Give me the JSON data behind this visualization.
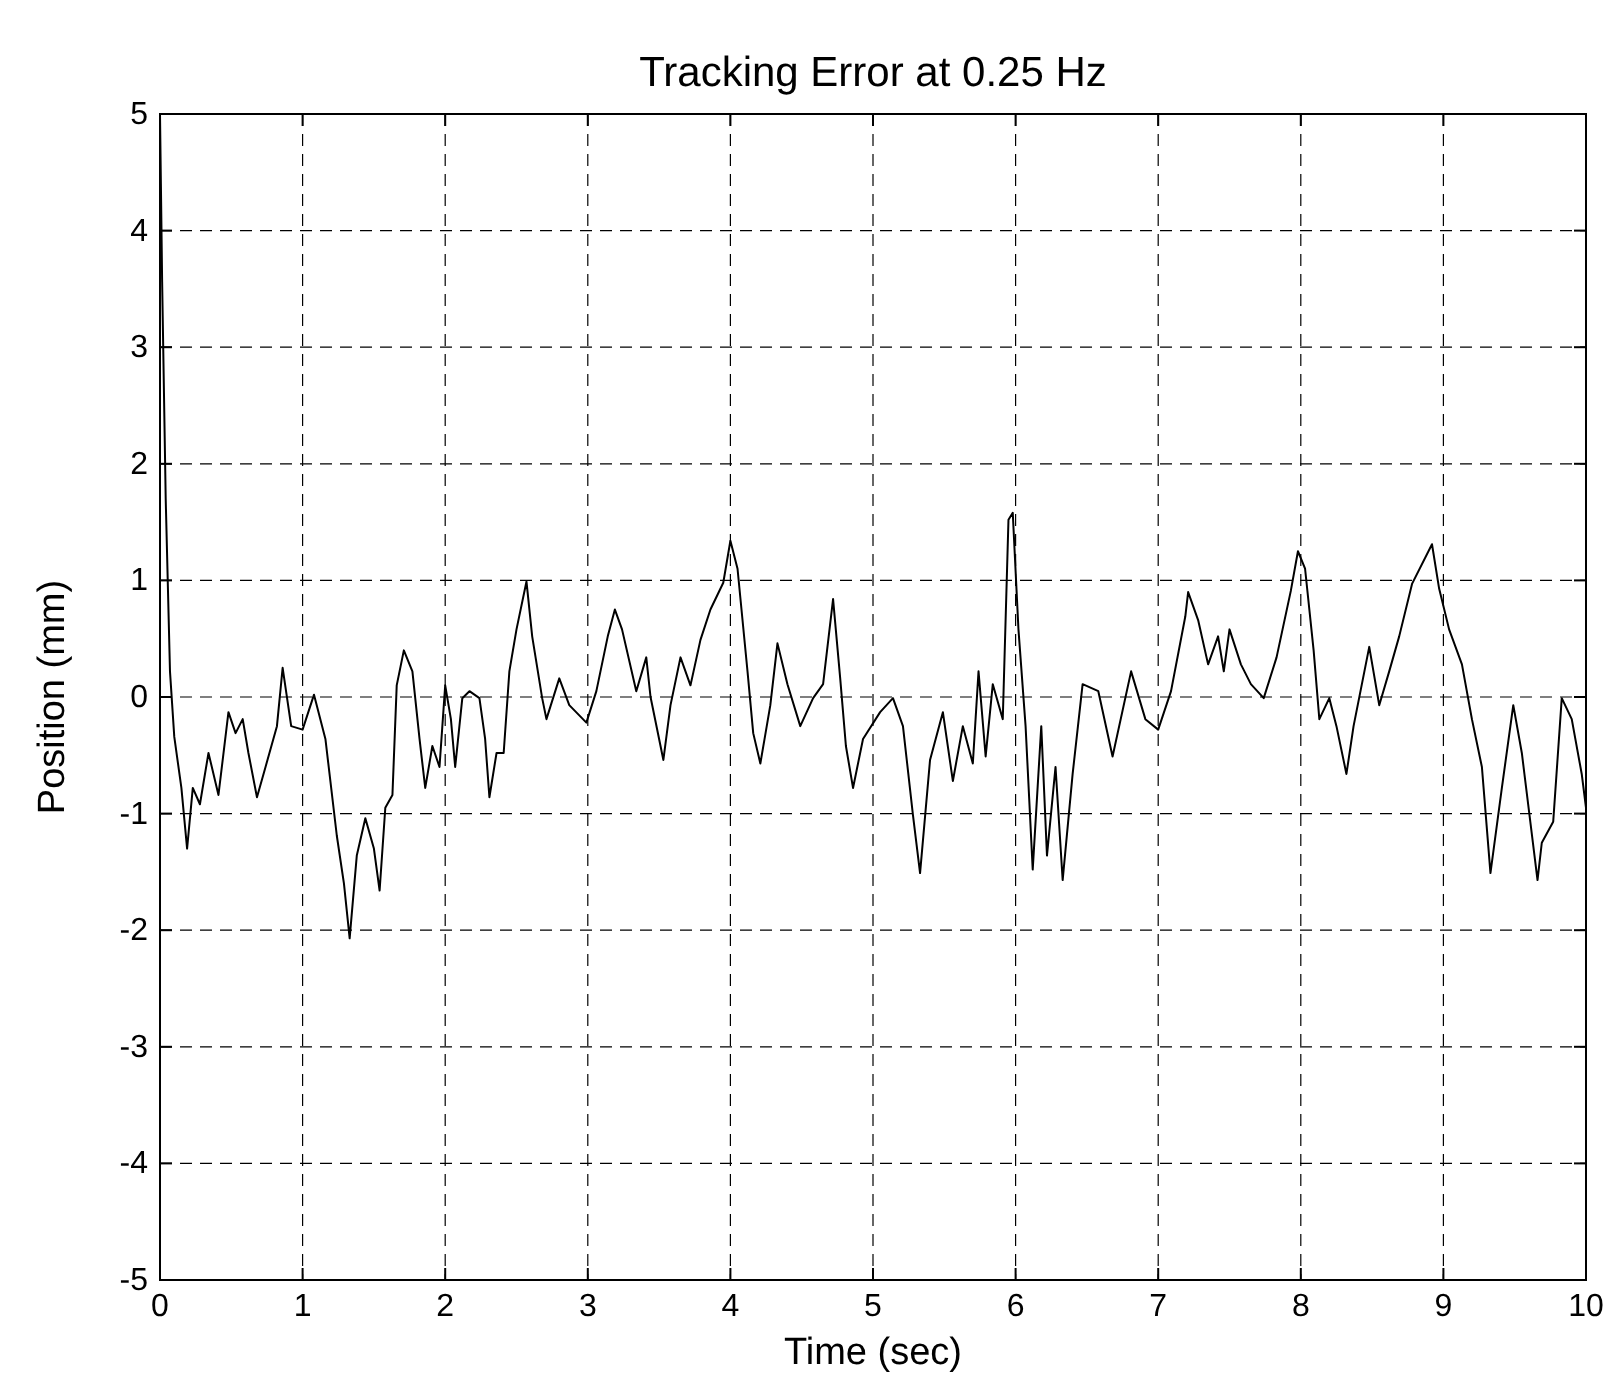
{
  "chart_data": {
    "type": "line",
    "title": "Tracking Error at 0.25 Hz",
    "xlabel": "Time (sec)",
    "ylabel": "Position (mm)",
    "xlim": [
      0,
      10
    ],
    "xticks": [
      0,
      1,
      2,
      3,
      4,
      5,
      6,
      7,
      8,
      9,
      10
    ],
    "ylim": [
      -5,
      5
    ],
    "yticks": [
      -5,
      -4,
      -3,
      -2,
      -1,
      0,
      1,
      2,
      3,
      4,
      5
    ],
    "grid": true,
    "marker": "none",
    "line_style": "solid",
    "series": [
      {
        "color": "#000000",
        "x": [
          0,
          0.015,
          0.04,
          0.07,
          0.1,
          0.15,
          0.19,
          0.23,
          0.28,
          0.34,
          0.41,
          0.48,
          0.53,
          0.58,
          0.62,
          0.68,
          0.74,
          0.82,
          0.86,
          0.92,
          1.0,
          1.08,
          1.16,
          1.24,
          1.29,
          1.33,
          1.38,
          1.44,
          1.5,
          1.54,
          1.58,
          1.63,
          1.66,
          1.71,
          1.77,
          1.82,
          1.86,
          1.91,
          1.96,
          2.0,
          2.04,
          2.07,
          2.12,
          2.17,
          2.24,
          2.28,
          2.31,
          2.36,
          2.41,
          2.45,
          2.5,
          2.57,
          2.61,
          2.68,
          2.71,
          2.8,
          2.87,
          2.99,
          3.06,
          3.14,
          3.19,
          3.24,
          3.34,
          3.41,
          3.44,
          3.53,
          3.58,
          3.65,
          3.72,
          3.79,
          3.86,
          3.95,
          4.0,
          4.05,
          4.12,
          4.16,
          4.21,
          4.28,
          4.33,
          4.4,
          4.49,
          4.58,
          4.65,
          4.72,
          4.77,
          4.81,
          4.86,
          4.93,
          5.05,
          5.14,
          5.21,
          5.28,
          5.33,
          5.4,
          5.49,
          5.56,
          5.63,
          5.7,
          5.74,
          5.79,
          5.84,
          5.91,
          5.95,
          5.98,
          6.02,
          6.07,
          6.12,
          6.18,
          6.22,
          6.28,
          6.33,
          6.4,
          6.47,
          6.58,
          6.68,
          6.81,
          6.91,
          7.0,
          7.09,
          7.19,
          7.21,
          7.28,
          7.35,
          7.42,
          7.46,
          7.5,
          7.58,
          7.65,
          7.74,
          7.83,
          7.93,
          7.98,
          8.03,
          8.09,
          8.13,
          8.2,
          8.25,
          8.32,
          8.37,
          8.48,
          8.55,
          8.62,
          8.69,
          8.78,
          8.92,
          8.97,
          9.04,
          9.13,
          9.2,
          9.27,
          9.33,
          9.41,
          9.49,
          9.55,
          9.66,
          9.69,
          9.77,
          9.83,
          9.9,
          9.97,
          10.0
        ],
        "values": [
          5,
          3.56,
          1.7,
          0.22,
          -0.34,
          -0.78,
          -1.3,
          -0.78,
          -0.92,
          -0.48,
          -0.84,
          -0.13,
          -0.31,
          -0.19,
          -0.48,
          -0.86,
          -0.6,
          -0.25,
          0.25,
          -0.25,
          -0.28,
          0.02,
          -0.36,
          -1.19,
          -1.6,
          -2.07,
          -1.36,
          -1.04,
          -1.3,
          -1.66,
          -0.95,
          -0.84,
          0.1,
          0.4,
          0.22,
          -0.36,
          -0.78,
          -0.42,
          -0.6,
          0.1,
          -0.19,
          -0.6,
          -0.01,
          0.05,
          -0.01,
          -0.36,
          -0.86,
          -0.48,
          -0.48,
          0.22,
          0.58,
          0.99,
          0.52,
          -0.01,
          -0.19,
          0.16,
          -0.07,
          -0.22,
          0.05,
          0.52,
          0.75,
          0.58,
          0.05,
          0.34,
          0,
          -0.54,
          -0.07,
          0.34,
          0.1,
          0.49,
          0.75,
          0.98,
          1.34,
          1.1,
          0.22,
          -0.31,
          -0.57,
          -0.07,
          0.46,
          0.11,
          -0.25,
          -0.01,
          0.11,
          0.84,
          0.16,
          -0.42,
          -0.78,
          -0.36,
          -0.13,
          -0.01,
          -0.25,
          -1.01,
          -1.51,
          -0.54,
          -0.13,
          -0.72,
          -0.25,
          -0.57,
          0.22,
          -0.51,
          0.11,
          -0.19,
          1.52,
          1.58,
          0.58,
          -0.25,
          -1.48,
          -0.25,
          -1.36,
          -0.6,
          -1.57,
          -0.66,
          0.11,
          0.05,
          -0.51,
          0.22,
          -0.19,
          -0.28,
          0.05,
          0.69,
          0.9,
          0.66,
          0.28,
          0.52,
          0.22,
          0.58,
          0.28,
          0.11,
          -0.01,
          0.34,
          0.91,
          1.25,
          1.1,
          0.4,
          -0.19,
          -0.01,
          -0.25,
          -0.66,
          -0.25,
          0.43,
          -0.07,
          0.22,
          0.52,
          0.97,
          1.31,
          0.93,
          0.58,
          0.28,
          -0.19,
          -0.6,
          -1.51,
          -0.78,
          -0.07,
          -0.48,
          -1.57,
          -1.25,
          -1.07,
          -0.01,
          -0.19,
          -0.66,
          -0.95
        ]
      }
    ]
  }
}
